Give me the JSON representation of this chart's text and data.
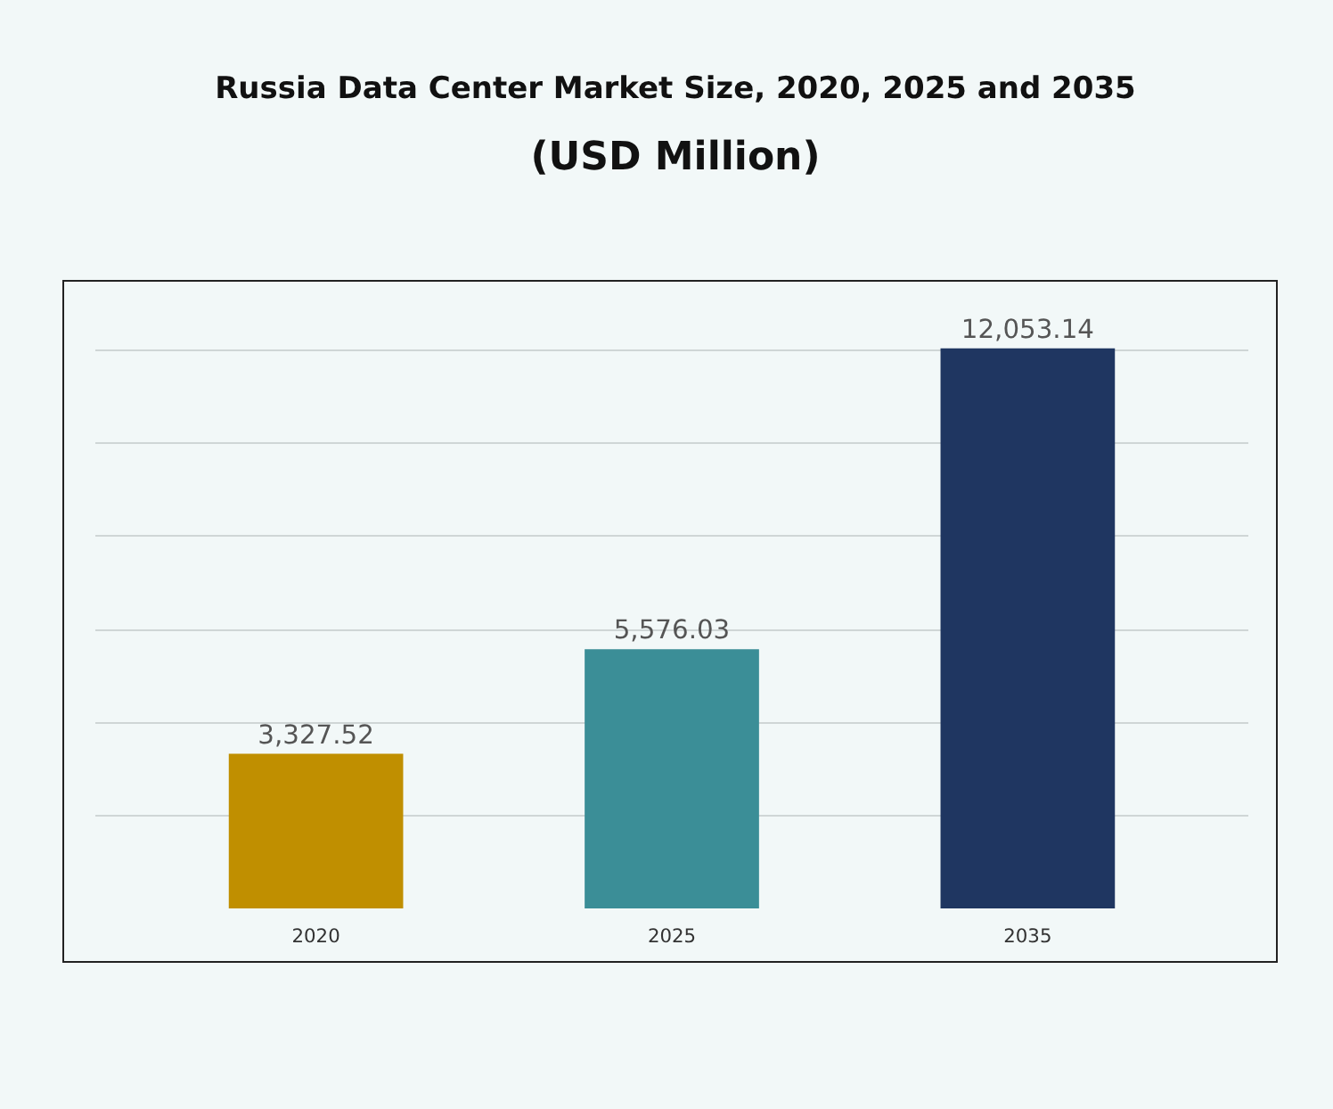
{
  "chart_data": {
    "type": "bar",
    "title": "Russia Data Center Market Size, 2020, 2025 and 2035",
    "subtitle": "(USD Million)",
    "categories": [
      "2020",
      "2025",
      "2035"
    ],
    "values": [
      3327.52,
      5576.03,
      12053.14
    ],
    "colors": [
      "#c08f00",
      "#3b8e97",
      "#1f3661"
    ],
    "value_labels": [
      "3,327.52",
      "5,576.03",
      "12,053.14"
    ],
    "grid": "y",
    "tick_labels": "x"
  }
}
